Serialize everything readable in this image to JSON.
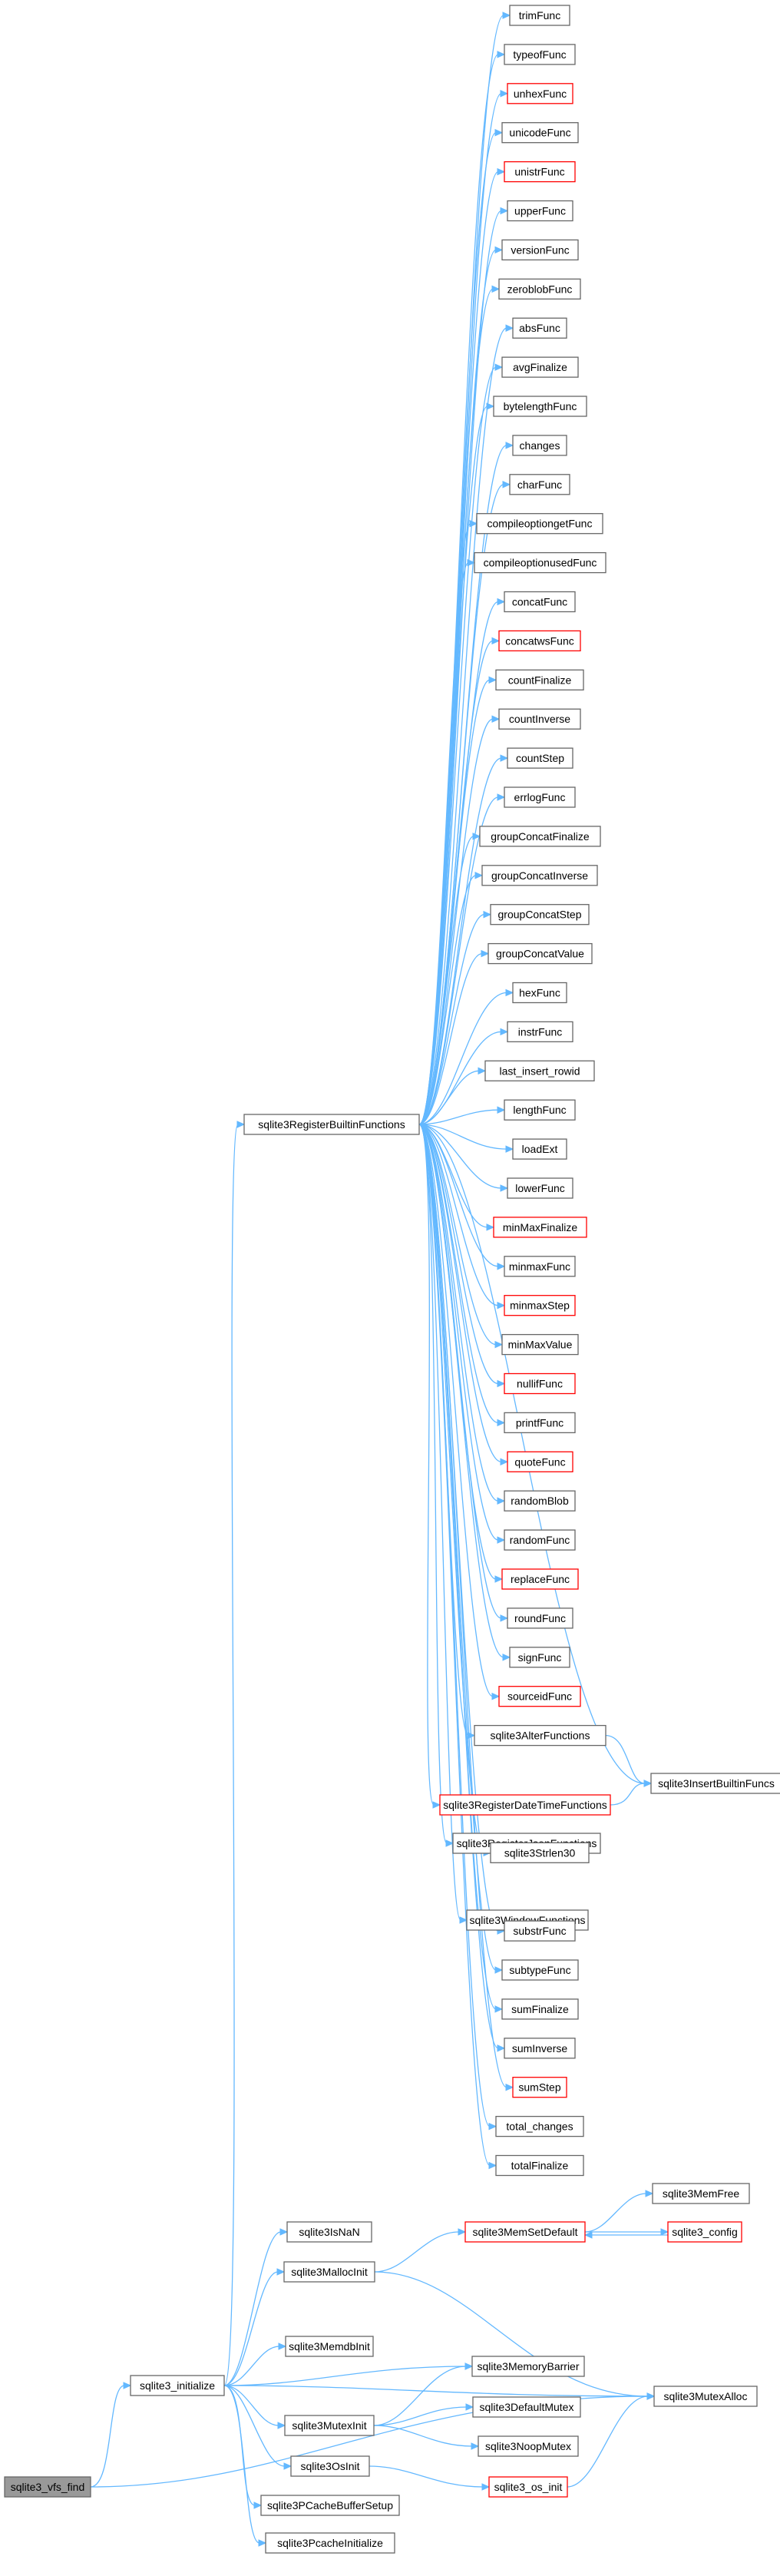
{
  "colors": {
    "edge": "#63b8ff",
    "node_border": "#666666",
    "node_border_red": "#ff0000",
    "node_fill": "#ffffff",
    "root_fill": "#999999"
  },
  "nodes": [
    {
      "id": "vfs_find",
      "label": "sqlite3_vfs_find",
      "style": "root"
    },
    {
      "id": "initialize",
      "label": "sqlite3_initialize",
      "style": "normal"
    },
    {
      "id": "isnan",
      "label": "sqlite3IsNaN",
      "style": "normal"
    },
    {
      "id": "mallocinit",
      "label": "sqlite3MallocInit",
      "style": "normal"
    },
    {
      "id": "memdbinit",
      "label": "sqlite3MemdbInit",
      "style": "normal"
    },
    {
      "id": "mutexinit",
      "label": "sqlite3MutexInit",
      "style": "normal"
    },
    {
      "id": "osinit",
      "label": "sqlite3OsInit",
      "style": "normal"
    },
    {
      "id": "pcachebuf",
      "label": "sqlite3PCacheBufferSetup",
      "style": "normal"
    },
    {
      "id": "pcacheinit",
      "label": "sqlite3PcacheInitialize",
      "style": "normal"
    },
    {
      "id": "registerbuiltin",
      "label": "sqlite3RegisterBuiltinFunctions",
      "style": "normal"
    },
    {
      "id": "memsetdefault",
      "label": "sqlite3MemSetDefault",
      "style": "red"
    },
    {
      "id": "memfree",
      "label": "sqlite3MemFree",
      "style": "normal"
    },
    {
      "id": "config",
      "label": "sqlite3_config",
      "style": "red"
    },
    {
      "id": "membarrier",
      "label": "sqlite3MemoryBarrier",
      "style": "normal"
    },
    {
      "id": "defaultmutex",
      "label": "sqlite3DefaultMutex",
      "style": "normal"
    },
    {
      "id": "noopmutex",
      "label": "sqlite3NoopMutex",
      "style": "normal"
    },
    {
      "id": "osinit2",
      "label": "sqlite3_os_init",
      "style": "red"
    },
    {
      "id": "mutexalloc",
      "label": "sqlite3MutexAlloc",
      "style": "normal"
    },
    {
      "id": "insertbuiltin",
      "label": "sqlite3InsertBuiltinFuncs",
      "style": "normal"
    },
    {
      "id": "f_trimfunc",
      "label": "trimFunc",
      "style": "normal"
    },
    {
      "id": "f_typeoffunc",
      "label": "typeofFunc",
      "style": "normal"
    },
    {
      "id": "f_unhexfunc",
      "label": "unhexFunc",
      "style": "red"
    },
    {
      "id": "f_unicodefunc",
      "label": "unicodeFunc",
      "style": "normal"
    },
    {
      "id": "f_unistrfunc",
      "label": "unistrFunc",
      "style": "red"
    },
    {
      "id": "f_upperfunc",
      "label": "upperFunc",
      "style": "normal"
    },
    {
      "id": "f_versionfunc",
      "label": "versionFunc",
      "style": "normal"
    },
    {
      "id": "f_zeroblobfunc",
      "label": "zeroblobFunc",
      "style": "normal"
    },
    {
      "id": "f_absfunc",
      "label": "absFunc",
      "style": "normal"
    },
    {
      "id": "f_avgfinalize",
      "label": "avgFinalize",
      "style": "normal"
    },
    {
      "id": "f_bytelengthfunc",
      "label": "bytelengthFunc",
      "style": "normal"
    },
    {
      "id": "f_changes",
      "label": "changes",
      "style": "normal"
    },
    {
      "id": "f_charfunc",
      "label": "charFunc",
      "style": "normal"
    },
    {
      "id": "f_compileoptiongetfunc",
      "label": "compileoptiongetFunc",
      "style": "normal"
    },
    {
      "id": "f_compileoptionusedfunc",
      "label": "compileoptionusedFunc",
      "style": "normal"
    },
    {
      "id": "f_concatfunc",
      "label": "concatFunc",
      "style": "normal"
    },
    {
      "id": "f_concatwsfunc",
      "label": "concatwsFunc",
      "style": "red"
    },
    {
      "id": "f_countfinalize",
      "label": "countFinalize",
      "style": "normal"
    },
    {
      "id": "f_countinverse",
      "label": "countInverse",
      "style": "normal"
    },
    {
      "id": "f_countstep",
      "label": "countStep",
      "style": "normal"
    },
    {
      "id": "f_errlogfunc",
      "label": "errlogFunc",
      "style": "normal"
    },
    {
      "id": "f_groupconcatfinalize",
      "label": "groupConcatFinalize",
      "style": "normal"
    },
    {
      "id": "f_groupconcatinverse",
      "label": "groupConcatInverse",
      "style": "normal"
    },
    {
      "id": "f_groupconcatstep",
      "label": "groupConcatStep",
      "style": "normal"
    },
    {
      "id": "f_groupconcatvalue",
      "label": "groupConcatValue",
      "style": "normal"
    },
    {
      "id": "f_hexfunc",
      "label": "hexFunc",
      "style": "normal"
    },
    {
      "id": "f_instrfunc",
      "label": "instrFunc",
      "style": "normal"
    },
    {
      "id": "f_last_insert_rowid",
      "label": "last_insert_rowid",
      "style": "normal"
    },
    {
      "id": "f_lengthfunc",
      "label": "lengthFunc",
      "style": "normal"
    },
    {
      "id": "f_loadext",
      "label": "loadExt",
      "style": "normal"
    },
    {
      "id": "f_lowerfunc",
      "label": "lowerFunc",
      "style": "normal"
    },
    {
      "id": "f_minmaxfinalize",
      "label": "minMaxFinalize",
      "style": "red"
    },
    {
      "id": "f_minmaxfunc",
      "label": "minmaxFunc",
      "style": "normal"
    },
    {
      "id": "f_minmaxstep",
      "label": "minmaxStep",
      "style": "red"
    },
    {
      "id": "f_minmaxvalue",
      "label": "minMaxValue",
      "style": "normal"
    },
    {
      "id": "f_nulliffunc",
      "label": "nullifFunc",
      "style": "red"
    },
    {
      "id": "f_printffunc",
      "label": "printfFunc",
      "style": "normal"
    },
    {
      "id": "f_quotefunc",
      "label": "quoteFunc",
      "style": "red"
    },
    {
      "id": "f_randomblob",
      "label": "randomBlob",
      "style": "normal"
    },
    {
      "id": "f_randomfunc",
      "label": "randomFunc",
      "style": "normal"
    },
    {
      "id": "f_replacefunc",
      "label": "replaceFunc",
      "style": "red"
    },
    {
      "id": "f_roundfunc",
      "label": "roundFunc",
      "style": "normal"
    },
    {
      "id": "f_signfunc",
      "label": "signFunc",
      "style": "normal"
    },
    {
      "id": "f_sourceidfunc",
      "label": "sourceidFunc",
      "style": "red"
    },
    {
      "id": "f_sqlite3alterfunctions",
      "label": "sqlite3AlterFunctions",
      "style": "normal"
    },
    {
      "id": "f_sqlite3registerdatetimefunctions",
      "label": "sqlite3RegisterDateTimeFunctions",
      "style": "red"
    },
    {
      "id": "f_sqlite3registerjsonfunctions",
      "label": "sqlite3RegisterJsonFunctions",
      "style": "normal"
    },
    {
      "id": "f_sqlite3strlen30",
      "label": "sqlite3Strlen30",
      "style": "normal"
    },
    {
      "id": "f_sqlite3windowfunctions",
      "label": "sqlite3WindowFunctions",
      "style": "normal"
    },
    {
      "id": "f_substrfunc",
      "label": "substrFunc",
      "style": "normal"
    },
    {
      "id": "f_subtypefunc",
      "label": "subtypeFunc",
      "style": "normal"
    },
    {
      "id": "f_sumfinalize",
      "label": "sumFinalize",
      "style": "normal"
    },
    {
      "id": "f_suminverse",
      "label": "sumInverse",
      "style": "normal"
    },
    {
      "id": "f_sumstep",
      "label": "sumStep",
      "style": "red"
    },
    {
      "id": "f_total_changes",
      "label": "total_changes",
      "style": "normal"
    },
    {
      "id": "f_totalfinalize",
      "label": "totalFinalize",
      "style": "normal"
    }
  ],
  "edges": [
    [
      "vfs_find",
      "initialize"
    ],
    [
      "vfs_find",
      "mutexalloc"
    ],
    [
      "initialize",
      "isnan"
    ],
    [
      "initialize",
      "mallocinit"
    ],
    [
      "initialize",
      "memdbinit"
    ],
    [
      "initialize",
      "mutexinit"
    ],
    [
      "initialize",
      "osinit"
    ],
    [
      "initialize",
      "pcachebuf"
    ],
    [
      "initialize",
      "pcacheinit"
    ],
    [
      "initialize",
      "registerbuiltin"
    ],
    [
      "initialize",
      "membarrier"
    ],
    [
      "initialize",
      "mutexalloc"
    ],
    [
      "mallocinit",
      "memsetdefault"
    ],
    [
      "mallocinit",
      "mutexalloc"
    ],
    [
      "memsetdefault",
      "memfree"
    ],
    [
      "memsetdefault",
      "config"
    ],
    [
      "config",
      "memsetdefault"
    ],
    [
      "mutexinit",
      "membarrier"
    ],
    [
      "mutexinit",
      "defaultmutex"
    ],
    [
      "mutexinit",
      "noopmutex"
    ],
    [
      "osinit",
      "osinit2"
    ],
    [
      "osinit2",
      "mutexalloc"
    ],
    [
      "registerbuiltin",
      "f_trimfunc"
    ],
    [
      "registerbuiltin",
      "f_typeoffunc"
    ],
    [
      "registerbuiltin",
      "f_unhexfunc"
    ],
    [
      "registerbuiltin",
      "f_unicodefunc"
    ],
    [
      "registerbuiltin",
      "f_unistrfunc"
    ],
    [
      "registerbuiltin",
      "f_upperfunc"
    ],
    [
      "registerbuiltin",
      "f_versionfunc"
    ],
    [
      "registerbuiltin",
      "f_zeroblobfunc"
    ],
    [
      "registerbuiltin",
      "f_absfunc"
    ],
    [
      "registerbuiltin",
      "f_avgfinalize"
    ],
    [
      "registerbuiltin",
      "f_bytelengthfunc"
    ],
    [
      "registerbuiltin",
      "f_changes"
    ],
    [
      "registerbuiltin",
      "f_charfunc"
    ],
    [
      "registerbuiltin",
      "f_compileoptiongetfunc"
    ],
    [
      "registerbuiltin",
      "f_compileoptionusedfunc"
    ],
    [
      "registerbuiltin",
      "f_concatfunc"
    ],
    [
      "registerbuiltin",
      "f_concatwsfunc"
    ],
    [
      "registerbuiltin",
      "f_countfinalize"
    ],
    [
      "registerbuiltin",
      "f_countinverse"
    ],
    [
      "registerbuiltin",
      "f_countstep"
    ],
    [
      "registerbuiltin",
      "f_errlogfunc"
    ],
    [
      "registerbuiltin",
      "f_groupconcatfinalize"
    ],
    [
      "registerbuiltin",
      "f_groupconcatinverse"
    ],
    [
      "registerbuiltin",
      "f_groupconcatstep"
    ],
    [
      "registerbuiltin",
      "f_groupconcatvalue"
    ],
    [
      "registerbuiltin",
      "f_hexfunc"
    ],
    [
      "registerbuiltin",
      "f_instrfunc"
    ],
    [
      "registerbuiltin",
      "f_last_insert_rowid"
    ],
    [
      "registerbuiltin",
      "f_lengthfunc"
    ],
    [
      "registerbuiltin",
      "f_loadext"
    ],
    [
      "registerbuiltin",
      "f_lowerfunc"
    ],
    [
      "registerbuiltin",
      "f_minmaxfinalize"
    ],
    [
      "registerbuiltin",
      "f_minmaxfunc"
    ],
    [
      "registerbuiltin",
      "f_minmaxstep"
    ],
    [
      "registerbuiltin",
      "f_minmaxvalue"
    ],
    [
      "registerbuiltin",
      "f_nulliffunc"
    ],
    [
      "registerbuiltin",
      "f_printffunc"
    ],
    [
      "registerbuiltin",
      "f_quotefunc"
    ],
    [
      "registerbuiltin",
      "f_randomblob"
    ],
    [
      "registerbuiltin",
      "f_randomfunc"
    ],
    [
      "registerbuiltin",
      "f_replacefunc"
    ],
    [
      "registerbuiltin",
      "f_roundfunc"
    ],
    [
      "registerbuiltin",
      "f_signfunc"
    ],
    [
      "registerbuiltin",
      "f_sourceidfunc"
    ],
    [
      "registerbuiltin",
      "f_sqlite3alterfunctions"
    ],
    [
      "registerbuiltin",
      "f_sqlite3registerdatetimefunctions"
    ],
    [
      "registerbuiltin",
      "f_sqlite3registerjsonfunctions"
    ],
    [
      "registerbuiltin",
      "f_sqlite3strlen30"
    ],
    [
      "registerbuiltin",
      "f_sqlite3windowfunctions"
    ],
    [
      "registerbuiltin",
      "f_substrfunc"
    ],
    [
      "registerbuiltin",
      "f_subtypefunc"
    ],
    [
      "registerbuiltin",
      "f_sumfinalize"
    ],
    [
      "registerbuiltin",
      "f_suminverse"
    ],
    [
      "registerbuiltin",
      "f_sumstep"
    ],
    [
      "registerbuiltin",
      "f_total_changes"
    ],
    [
      "registerbuiltin",
      "f_totalfinalize"
    ],
    [
      "registerbuiltin",
      "insertbuiltin"
    ],
    [
      "f_sqlite3alterfunctions",
      "insertbuiltin"
    ],
    [
      "f_sqlite3registerdatetimefunctions",
      "insertbuiltin"
    ]
  ]
}
